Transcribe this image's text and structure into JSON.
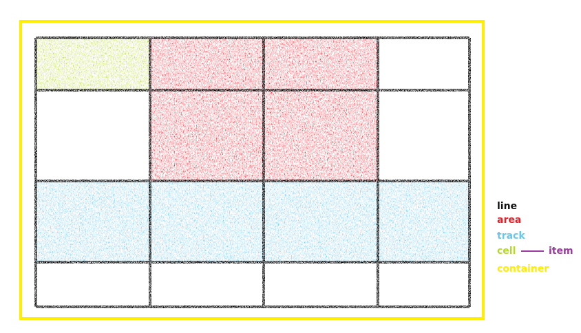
{
  "diagram": {
    "columns": 4,
    "rows": 4,
    "cells": [
      [
        "cell",
        "area",
        "area",
        "empty"
      ],
      [
        "empty",
        "area",
        "area",
        "empty"
      ],
      [
        "track",
        "track",
        "track",
        "track"
      ],
      [
        "empty",
        "empty",
        "empty",
        "empty"
      ]
    ],
    "colors": {
      "container": "#ffee00",
      "line": "#111111",
      "area": "#e8202a",
      "track": "#6cc6e8",
      "cell": "#b4d82a",
      "item": "#9b3aa0",
      "background": "#ffffff"
    }
  },
  "legend": {
    "line": "line",
    "area": "area",
    "track": "track",
    "cell": "cell",
    "item": "item",
    "container": "container"
  }
}
